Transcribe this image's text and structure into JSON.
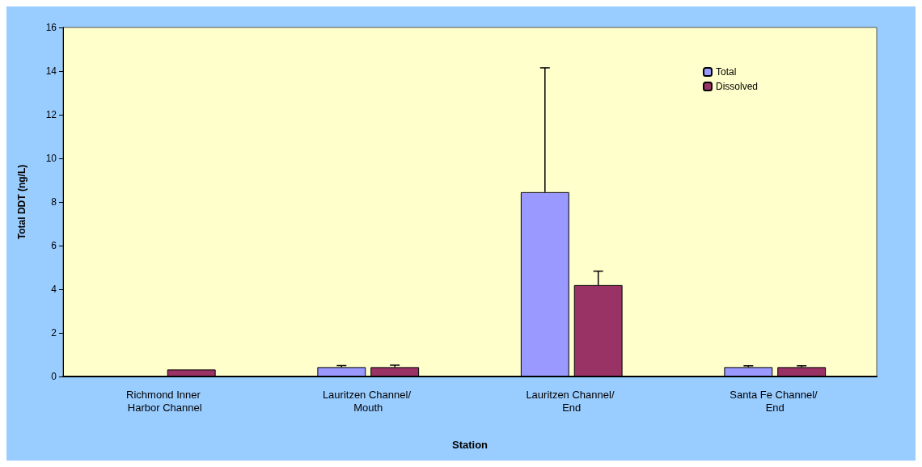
{
  "chart_data": {
    "type": "bar",
    "xlabel": "Station",
    "ylabel": "Total DDT (ng/L)",
    "categories": [
      "Richmond Inner Harbor Channel",
      "Lauritzen Channel/ Mouth",
      "Lauritzen Channel/ End",
      "Santa Fe Channel/ End"
    ],
    "series": [
      {
        "name": "Total",
        "color": "#9999ff",
        "values": [
          null,
          0.43,
          8.45,
          0.43
        ],
        "errors": [
          null,
          [
            0.43,
            0.5
          ],
          [
            8.45,
            14.15
          ],
          [
            0.43,
            0.49
          ]
        ]
      },
      {
        "name": "Dissolved",
        "color": "#993366",
        "values": [
          0.32,
          0.43,
          4.19,
          0.43
        ],
        "errors": [
          null,
          [
            0.43,
            0.52
          ],
          [
            4.19,
            4.83
          ],
          [
            0.43,
            0.49
          ]
        ]
      }
    ],
    "ylim": [
      0,
      16
    ],
    "yticks": [
      0,
      2,
      4,
      6,
      8,
      10,
      12,
      14,
      16
    ],
    "grid": false,
    "legend": "top right"
  }
}
